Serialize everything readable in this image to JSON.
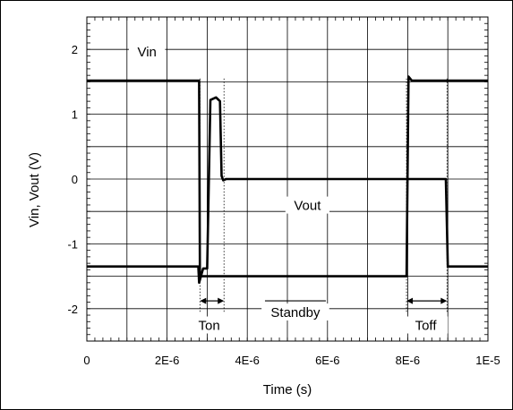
{
  "chart_data": {
    "type": "line",
    "title": "",
    "xlabel": "Time (s)",
    "ylabel": "Vin, Vout (V)",
    "xlim": [
      0,
      1e-05
    ],
    "ylim": [
      -2.5,
      2.5
    ],
    "x_ticks": [
      0,
      2e-06,
      4e-06,
      6e-06,
      8e-06,
      1e-05
    ],
    "x_tick_labels": [
      "0",
      "2E-6",
      "4E-6",
      "6E-6",
      "8E-6",
      "1E-5"
    ],
    "y_ticks": [
      2,
      1,
      0,
      -1,
      -2
    ],
    "y_tick_labels": [
      "2",
      "1",
      "0",
      "-1",
      "-2"
    ],
    "grid": true,
    "series": [
      {
        "name": "Vin",
        "x": [
          0,
          2.8e-06,
          2.82e-06,
          2.9e-06,
          7.97e-06,
          8.02e-06,
          8.1e-06,
          1e-05
        ],
        "y": [
          1.52,
          1.52,
          -1.5,
          -1.5,
          -1.5,
          1.58,
          1.52,
          1.52
        ]
      },
      {
        "name": "Vout",
        "x": [
          0,
          2.78e-06,
          2.8e-06,
          2.9e-06,
          3e-06,
          3.08e-06,
          3.22e-06,
          3.32e-06,
          3.36e-06,
          3.4e-06,
          3.47e-06,
          4e-06,
          7.95e-06,
          8e-06,
          8.8e-06,
          8.95e-06,
          9e-06,
          1e-05
        ],
        "y": [
          -1.35,
          -1.35,
          -1.6,
          -1.38,
          -1.38,
          1.22,
          1.26,
          1.2,
          0.05,
          -0.02,
          0,
          0,
          0,
          0,
          0,
          0,
          -1.35,
          -1.35
        ]
      }
    ],
    "annotations": [
      {
        "text": "Vin",
        "x": 1.5e-06,
        "y": 1.92
      },
      {
        "text": "Vout",
        "x": 5.5e-06,
        "y": -0.45
      },
      {
        "text": "Ton",
        "x": 3.05e-06,
        "y": -2.3
      },
      {
        "text": "Standby",
        "x": 5.2e-06,
        "y": -2.1
      },
      {
        "text": "Toff",
        "x": 8.45e-06,
        "y": -2.3
      }
    ],
    "timing_markers": [
      {
        "label": "Ton",
        "x_start": 2.82e-06,
        "x_end": 3.42e-06
      },
      {
        "label": "Toff",
        "x_start": 7.97e-06,
        "x_end": 8.98e-06
      }
    ]
  }
}
